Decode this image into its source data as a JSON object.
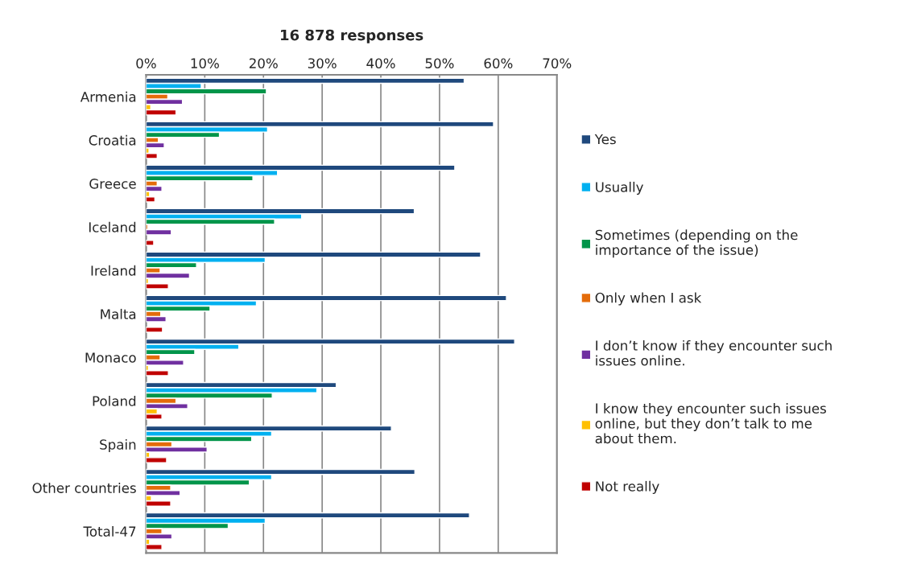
{
  "chart_data": {
    "type": "bar",
    "orientation": "horizontal",
    "title": "16 878 responses",
    "categories": [
      "Armenia",
      "Croatia",
      "Greece",
      "Iceland",
      "Ireland",
      "Malta",
      "Monaco",
      "Poland",
      "Spain",
      "Other countries",
      "Total-47"
    ],
    "series": [
      {
        "name": "Yes",
        "color": "#1f497d",
        "values": [
          54.2,
          59.2,
          52.6,
          45.7,
          57.0,
          61.4,
          62.8,
          32.4,
          41.8,
          45.8,
          55.1
        ]
      },
      {
        "name": "Usually",
        "color": "#00b0f0",
        "values": [
          9.4,
          20.7,
          22.4,
          26.5,
          20.3,
          18.8,
          15.8,
          29.1,
          21.4,
          21.4,
          20.3
        ]
      },
      {
        "name": "Sometimes (depending on the\nimportance of the issue)",
        "color": "#00954a",
        "values": [
          20.5,
          12.5,
          18.2,
          21.9,
          8.6,
          10.9,
          8.3,
          21.5,
          18.0,
          17.6,
          14.0
        ]
      },
      {
        "name": "Only when I ask",
        "color": "#e46c0a",
        "values": [
          3.7,
          2.1,
          1.9,
          0.3,
          2.4,
          2.5,
          2.4,
          5.1,
          4.4,
          4.2,
          2.7
        ]
      },
      {
        "name": "I don’t know if they encounter such\nissues online.",
        "color": "#7030a0",
        "values": [
          6.2,
          3.1,
          2.7,
          4.3,
          7.4,
          3.4,
          6.4,
          7.1,
          10.4,
          5.8,
          4.4
        ]
      },
      {
        "name": "I know they encounter such issues\nonline, but they don’t talk to me\nabout them.",
        "color": "#ffc000",
        "values": [
          0.8,
          0.5,
          0.6,
          null,
          0.4,
          null,
          0.4,
          1.9,
          0.6,
          0.9,
          0.6
        ]
      },
      {
        "name": "Not really",
        "color": "#c00000",
        "values": [
          5.1,
          1.9,
          1.5,
          1.3,
          3.8,
          2.8,
          3.8,
          2.7,
          3.5,
          4.2,
          2.7
        ]
      }
    ],
    "xlim": [
      0,
      70
    ],
    "xticks": [
      {
        "value": 0,
        "label": "0%"
      },
      {
        "value": 10,
        "label": "10%"
      },
      {
        "value": 20,
        "label": "20%"
      },
      {
        "value": 30,
        "label": "30%"
      },
      {
        "value": 40,
        "label": "40%"
      },
      {
        "value": 50,
        "label": "50%"
      },
      {
        "value": 60,
        "label": "60%"
      },
      {
        "value": 70,
        "label": "70%"
      }
    ],
    "grid": "x",
    "legend": "right"
  }
}
